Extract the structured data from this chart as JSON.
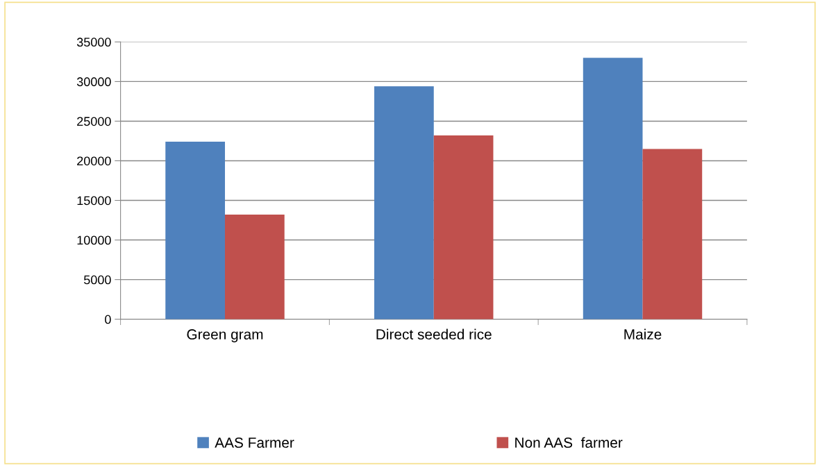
{
  "chart_data": {
    "type": "bar",
    "categories": [
      "Green gram",
      "Direct seeded rice",
      "Maize"
    ],
    "series": [
      {
        "name": "AAS Farmer",
        "color": "#4f81bd",
        "values": [
          22400,
          29400,
          33000
        ]
      },
      {
        "name": "Non AAS  farmer",
        "color": "#c0504d",
        "values": [
          13200,
          23200,
          21500
        ]
      }
    ],
    "ylim": [
      0,
      35000
    ],
    "yticks": [
      0,
      5000,
      10000,
      15000,
      20000,
      25000,
      30000,
      35000
    ],
    "grid": "y",
    "legend": "bottom"
  }
}
